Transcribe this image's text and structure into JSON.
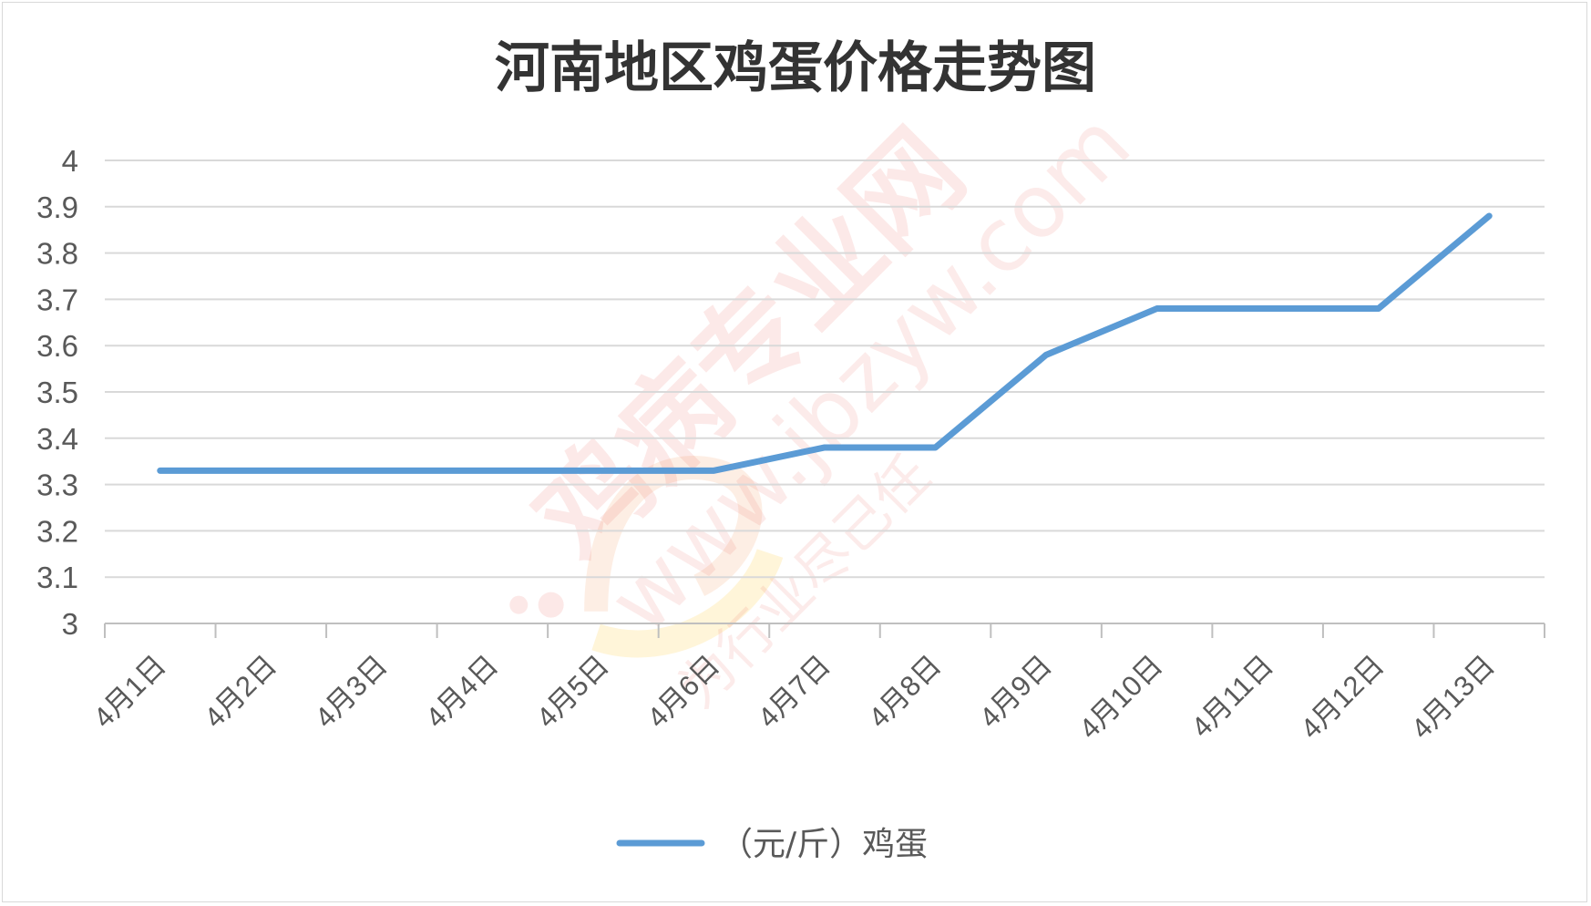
{
  "chart_data": {
    "type": "line",
    "title": "河南地区鸡蛋价格走势图",
    "categories": [
      "4月1日",
      "4月2日",
      "4月3日",
      "4月4日",
      "4月5日",
      "4月6日",
      "4月7日",
      "4月8日",
      "4月9日",
      "4月10日",
      "4月11日",
      "4月12日",
      "4月13日"
    ],
    "series": [
      {
        "name": "（元/斤）鸡蛋",
        "values": [
          3.33,
          3.33,
          3.33,
          3.33,
          3.33,
          3.33,
          3.38,
          3.38,
          3.58,
          3.68,
          3.68,
          3.68,
          3.88
        ],
        "color": "#5b9bd5"
      }
    ],
    "ylim": [
      3,
      4
    ],
    "yticks": [
      "3",
      "3.1",
      "3.2",
      "3.3",
      "3.4",
      "3.5",
      "3.6",
      "3.7",
      "3.8",
      "3.9",
      "4"
    ],
    "grid": true,
    "legend": "bottom",
    "xlabel": "",
    "ylabel": ""
  },
  "watermark": {
    "brand": "鸡病专业网",
    "url": "www.jbzyw.com",
    "slogan": "为行业尽己任"
  }
}
